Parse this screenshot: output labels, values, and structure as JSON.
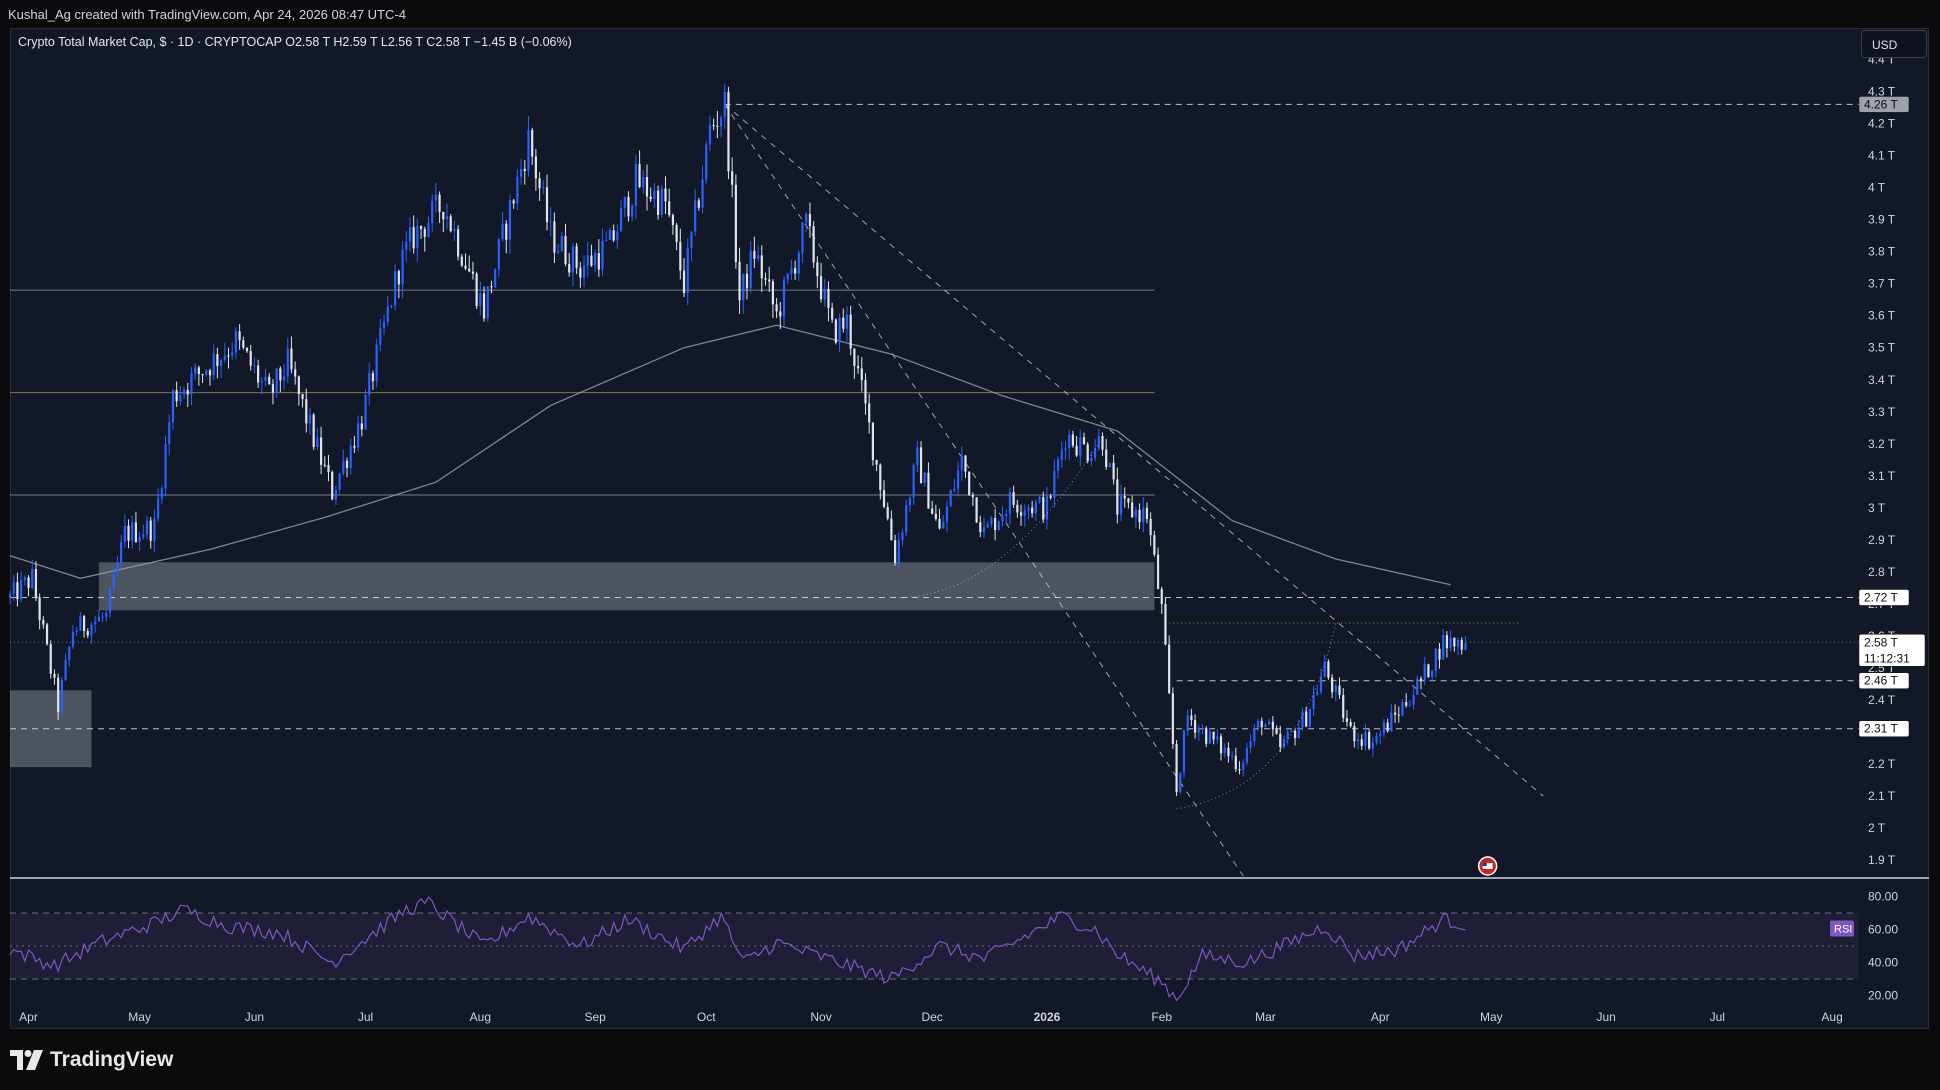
{
  "header": {
    "attribution": "Kushal_Ag created with TradingView.com, Apr 24, 2026 08:47 UTC-4",
    "legend": "Crypto Total Market Cap, $ · 1D · CRYPTOCAP  O2.58 T  H2.59 T  L2.56 T  C2.58 T  −1.45 B (−0.06%)",
    "currency": "USD"
  },
  "brand": {
    "name": "TradingView"
  },
  "colors": {
    "background": "#121827",
    "bull": "#2962ff",
    "bear": "#e0e3eb",
    "ma": "#9aa0ab",
    "rsi": "#7e57c2",
    "rsi_band": "#2a2446"
  },
  "price_tags": [
    {
      "label": "4.26 T",
      "value": 4.26,
      "style": "gray"
    },
    {
      "label": "2.72 T",
      "value": 2.72,
      "style": "white"
    },
    {
      "label": "2.58 T",
      "value": 2.58,
      "style": "white",
      "extra": "11:12:31"
    },
    {
      "label": "2.46 T",
      "value": 2.46,
      "style": "white"
    },
    {
      "label": "2.31 T",
      "value": 2.31,
      "style": "white"
    }
  ],
  "rsi_label": "RSI",
  "chart_data": {
    "type": "candlestick",
    "title": "Crypto Total Market Cap, $ · 1D · CRYPTOCAP",
    "ohlc": {
      "open": "2.58 T",
      "high": "2.59 T",
      "low": "2.56 T",
      "close": "2.58 T",
      "change": "−1.45 B (−0.06%)"
    },
    "y_unit": "T",
    "ylim": [
      1.85,
      4.48
    ],
    "y_ticks": [
      "4.4 T",
      "4.3 T",
      "4.2 T",
      "4.1 T",
      "4 T",
      "3.9 T",
      "3.8 T",
      "3.7 T",
      "3.6 T",
      "3.5 T",
      "3.4 T",
      "3.3 T",
      "3.2 T",
      "3.1 T",
      "3 T",
      "2.9 T",
      "2.8 T",
      "2.7 T",
      "2.6 T",
      "2.5 T",
      "2.4 T",
      "2.3 T",
      "2.2 T",
      "2.1 T",
      "2 T",
      "1.9 T"
    ],
    "x_ticks": [
      "Apr",
      "May",
      "Jun",
      "Jul",
      "Aug",
      "Sep",
      "Oct",
      "Nov",
      "Dec",
      "2026",
      "Feb",
      "Mar",
      "Apr",
      "May",
      "Jun",
      "Jul",
      "Aug"
    ],
    "x_range_dates": [
      "2025-03-27",
      "2026-08-08"
    ],
    "last_candle_date": "2026-04-24",
    "price_path": [
      [
        "2025-03-27",
        2.72
      ],
      [
        "2025-04-02",
        2.78
      ],
      [
        "2025-04-09",
        2.38
      ],
      [
        "2025-04-13",
        2.62
      ],
      [
        "2025-04-22",
        2.66
      ],
      [
        "2025-04-27",
        2.92
      ],
      [
        "2025-05-05",
        2.94
      ],
      [
        "2025-05-10",
        3.35
      ],
      [
        "2025-05-20",
        3.45
      ],
      [
        "2025-05-27",
        3.52
      ],
      [
        "2025-06-05",
        3.35
      ],
      [
        "2025-06-10",
        3.45
      ],
      [
        "2025-06-22",
        3.05
      ],
      [
        "2025-06-30",
        3.28
      ],
      [
        "2025-07-10",
        3.75
      ],
      [
        "2025-07-14",
        3.85
      ],
      [
        "2025-07-22",
        3.95
      ],
      [
        "2025-08-02",
        3.62
      ],
      [
        "2025-08-14",
        4.15
      ],
      [
        "2025-08-20",
        3.85
      ],
      [
        "2025-08-28",
        3.75
      ],
      [
        "2025-09-05",
        3.82
      ],
      [
        "2025-09-12",
        4.02
      ],
      [
        "2025-09-20",
        3.95
      ],
      [
        "2025-09-25",
        3.7
      ],
      [
        "2025-10-02",
        4.18
      ],
      [
        "2025-10-06",
        4.26
      ],
      [
        "2025-10-10",
        3.65
      ],
      [
        "2025-10-14",
        3.8
      ],
      [
        "2025-10-20",
        3.6
      ],
      [
        "2025-10-28",
        3.88
      ],
      [
        "2025-11-04",
        3.55
      ],
      [
        "2025-11-08",
        3.58
      ],
      [
        "2025-11-14",
        3.25
      ],
      [
        "2025-11-21",
        2.85
      ],
      [
        "2025-11-27",
        3.15
      ],
      [
        "2025-12-03",
        2.92
      ],
      [
        "2025-12-09",
        3.15
      ],
      [
        "2025-12-15",
        2.92
      ],
      [
        "2025-12-22",
        3.02
      ],
      [
        "2026-01-01",
        3.0
      ],
      [
        "2026-01-06",
        3.23
      ],
      [
        "2026-01-12",
        3.18
      ],
      [
        "2026-01-16",
        3.22
      ],
      [
        "2026-01-20",
        3.0
      ],
      [
        "2026-01-28",
        2.98
      ],
      [
        "2026-02-01",
        2.68
      ],
      [
        "2026-02-05",
        2.12
      ],
      [
        "2026-02-08",
        2.35
      ],
      [
        "2026-02-14",
        2.28
      ],
      [
        "2026-02-22",
        2.2
      ],
      [
        "2026-02-28",
        2.34
      ],
      [
        "2026-03-05",
        2.25
      ],
      [
        "2026-03-12",
        2.35
      ],
      [
        "2026-03-17",
        2.5
      ],
      [
        "2026-03-24",
        2.3
      ],
      [
        "2026-03-30",
        2.27
      ],
      [
        "2026-04-05",
        2.35
      ],
      [
        "2026-04-12",
        2.46
      ],
      [
        "2026-04-18",
        2.58
      ],
      [
        "2026-04-24",
        2.58
      ]
    ],
    "moving_average": [
      [
        "2025-03-27",
        2.85
      ],
      [
        "2025-04-15",
        2.78
      ],
      [
        "2025-05-20",
        2.87
      ],
      [
        "2025-06-20",
        2.97
      ],
      [
        "2025-07-20",
        3.08
      ],
      [
        "2025-08-20",
        3.32
      ],
      [
        "2025-09-25",
        3.5
      ],
      [
        "2025-10-20",
        3.57
      ],
      [
        "2025-11-20",
        3.48
      ],
      [
        "2025-12-20",
        3.35
      ],
      [
        "2026-01-20",
        3.24
      ],
      [
        "2026-02-20",
        2.96
      ],
      [
        "2026-03-20",
        2.84
      ],
      [
        "2026-04-20",
        2.76
      ]
    ],
    "horizontal_levels": [
      {
        "value": 3.68,
        "style": "solid",
        "end": "2026-01-30"
      },
      {
        "value": 3.36,
        "style": "solid-tan",
        "end": "2026-01-30"
      },
      {
        "value": 3.04,
        "style": "solid",
        "end": "2026-01-30"
      },
      {
        "value": 4.26,
        "style": "dashed",
        "start": "2025-10-06"
      },
      {
        "value": 2.72,
        "style": "dashed"
      },
      {
        "value": 2.46,
        "style": "dashed",
        "start": "2026-02-05"
      },
      {
        "value": 2.31,
        "style": "dashed"
      },
      {
        "value": 2.64,
        "style": "dotted-orange",
        "start": "2026-02-03",
        "end": "2026-05-09"
      },
      {
        "value": 2.58,
        "style": "dotted-gray"
      }
    ],
    "zones": [
      {
        "from_date": "2025-04-20",
        "to_date": "2026-01-30",
        "low": 2.68,
        "high": 2.83
      },
      {
        "from_date": "2025-03-27",
        "to_date": "2025-04-18",
        "low": 2.19,
        "high": 2.43
      }
    ],
    "trendlines": [
      {
        "from": [
          "2025-10-06",
          4.26
        ],
        "to": [
          "2026-05-15",
          2.1
        ]
      },
      {
        "from": [
          "2025-10-06",
          4.26
        ],
        "to": [
          "2026-02-23",
          1.85
        ]
      }
    ],
    "rsi": {
      "ylim": [
        10,
        90
      ],
      "ticks": [
        "80.00",
        "60.00",
        "40.00",
        "20.00"
      ],
      "levels": [
        70,
        50,
        30
      ],
      "path": [
        [
          "2025-03-27",
          48
        ],
        [
          "2025-04-08",
          38
        ],
        [
          "2025-04-20",
          52
        ],
        [
          "2025-05-05",
          64
        ],
        [
          "2025-05-13",
          72
        ],
        [
          "2025-05-25",
          62
        ],
        [
          "2025-06-08",
          58
        ],
        [
          "2025-06-22",
          40
        ],
        [
          "2025-07-12",
          72
        ],
        [
          "2025-07-18",
          76
        ],
        [
          "2025-08-02",
          50
        ],
        [
          "2025-08-14",
          68
        ],
        [
          "2025-08-28",
          50
        ],
        [
          "2025-09-10",
          66
        ],
        [
          "2025-09-25",
          48
        ],
        [
          "2025-10-05",
          68
        ],
        [
          "2025-10-11",
          40
        ],
        [
          "2025-10-20",
          52
        ],
        [
          "2025-11-03",
          42
        ],
        [
          "2025-11-20",
          30
        ],
        [
          "2025-12-03",
          50
        ],
        [
          "2025-12-15",
          42
        ],
        [
          "2026-01-05",
          68
        ],
        [
          "2026-01-14",
          60
        ],
        [
          "2026-01-20",
          45
        ],
        [
          "2026-02-01",
          28
        ],
        [
          "2026-02-05",
          18
        ],
        [
          "2026-02-12",
          44
        ],
        [
          "2026-02-24",
          40
        ],
        [
          "2026-03-17",
          62
        ],
        [
          "2026-03-25",
          44
        ],
        [
          "2026-04-06",
          48
        ],
        [
          "2026-04-18",
          66
        ],
        [
          "2026-04-24",
          63
        ]
      ]
    }
  }
}
